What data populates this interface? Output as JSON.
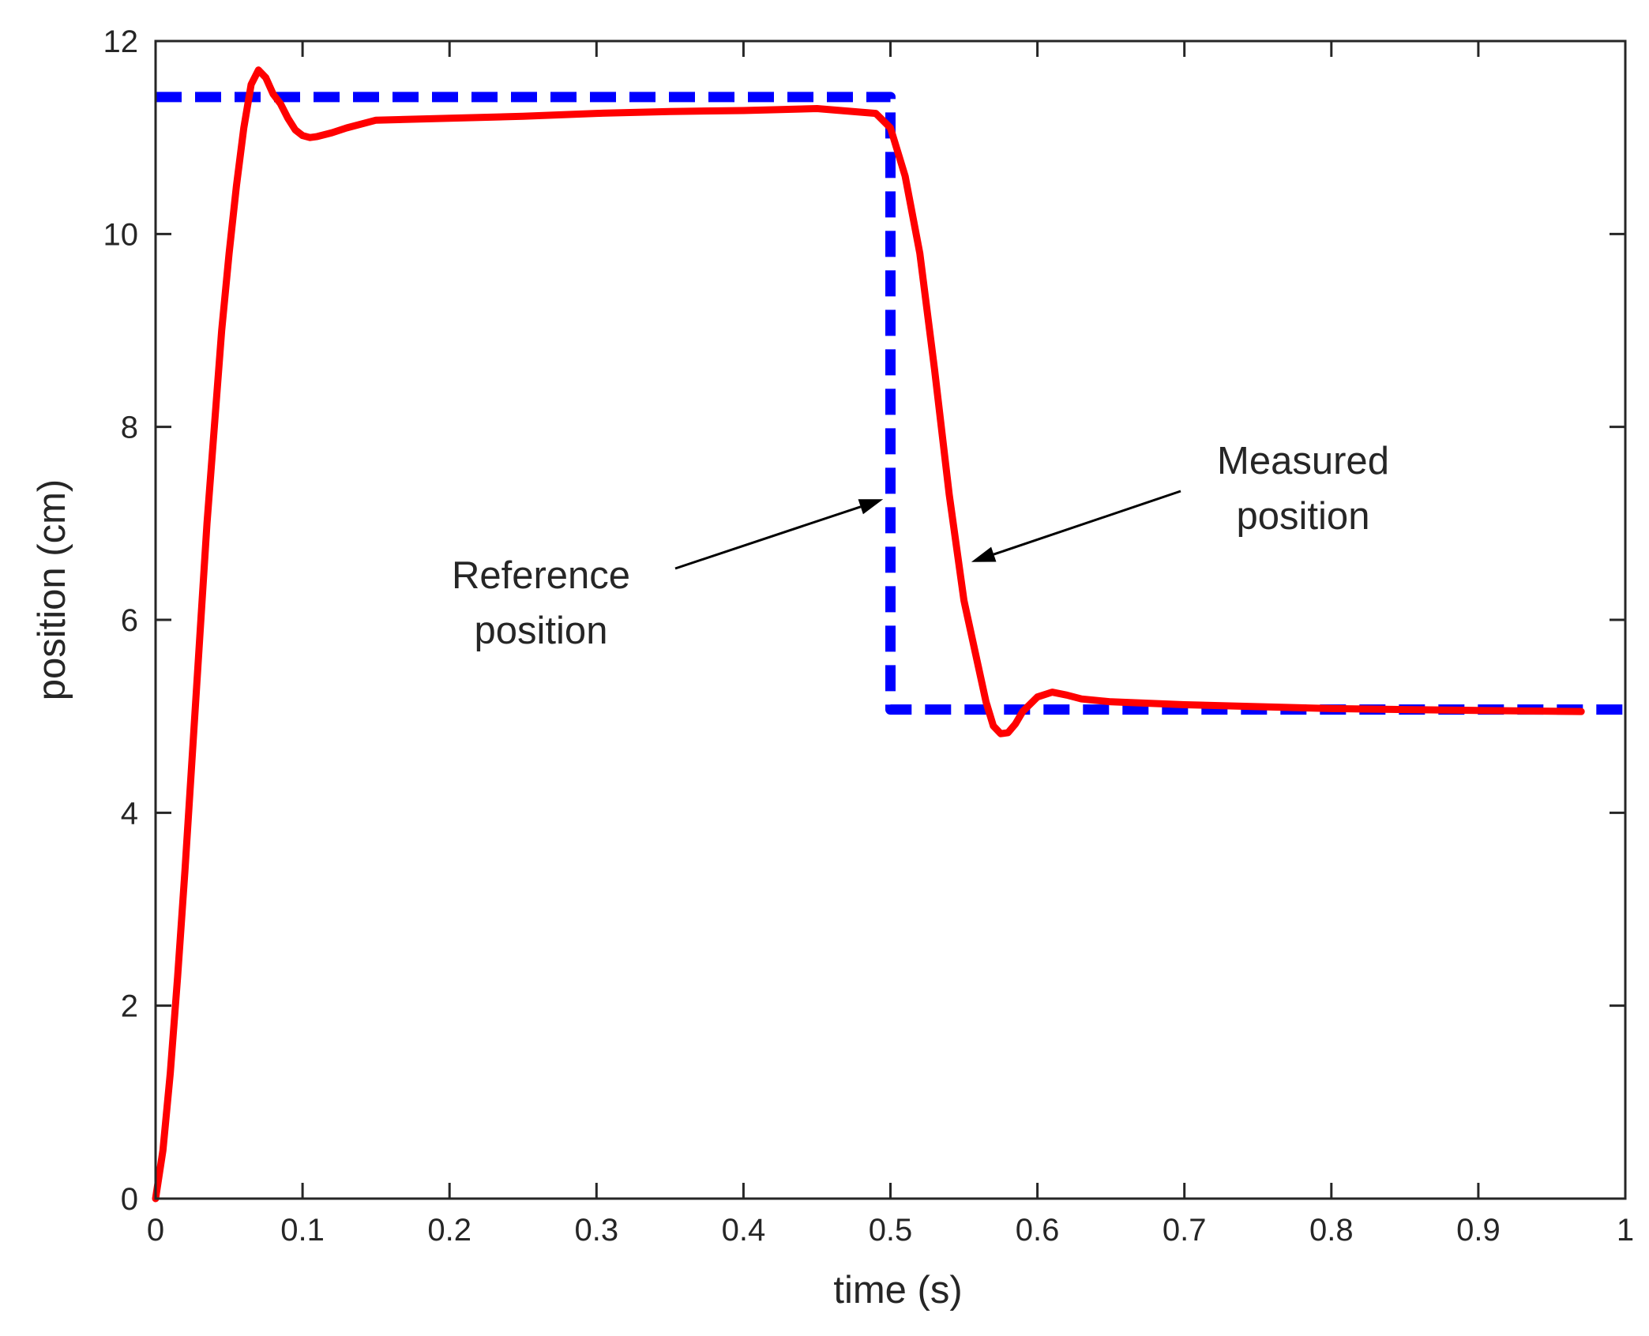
{
  "chart_data": {
    "type": "line",
    "title": "",
    "xlabel": "time (s)",
    "ylabel": "position (cm)",
    "xlim": [
      0,
      1
    ],
    "ylim": [
      0,
      12
    ],
    "xticks": [
      0,
      0.1,
      0.2,
      0.3,
      0.4,
      0.5,
      0.6,
      0.7,
      0.8,
      0.9,
      1
    ],
    "xtick_labels": [
      "0",
      "0.1",
      "0.2",
      "0.3",
      "0.4",
      "0.5",
      "0.6",
      "0.7",
      "0.8",
      "0.9",
      "1"
    ],
    "yticks": [
      0,
      2,
      4,
      6,
      8,
      10,
      12
    ],
    "ytick_labels": [
      "0",
      "2",
      "4",
      "6",
      "8",
      "10",
      "12"
    ],
    "grid": false,
    "series": [
      {
        "name": "Reference position",
        "style": "dashed",
        "color": "#0000ff",
        "x": [
          0,
          0.5,
          0.5,
          1.0
        ],
        "y": [
          11.42,
          11.42,
          5.07,
          5.07
        ]
      },
      {
        "name": "Measured position",
        "style": "solid",
        "color": "#ff0000",
        "x": [
          0,
          0.005,
          0.01,
          0.015,
          0.02,
          0.025,
          0.03,
          0.035,
          0.04,
          0.045,
          0.05,
          0.055,
          0.06,
          0.065,
          0.07,
          0.075,
          0.08,
          0.085,
          0.09,
          0.095,
          0.1,
          0.105,
          0.11,
          0.115,
          0.12,
          0.13,
          0.15,
          0.2,
          0.25,
          0.3,
          0.35,
          0.4,
          0.45,
          0.49,
          0.5,
          0.51,
          0.52,
          0.53,
          0.54,
          0.55,
          0.56,
          0.565,
          0.57,
          0.575,
          0.58,
          0.585,
          0.59,
          0.6,
          0.61,
          0.62,
          0.63,
          0.65,
          0.7,
          0.8,
          0.9,
          0.97
        ],
        "y": [
          0,
          0.5,
          1.3,
          2.3,
          3.4,
          4.6,
          5.8,
          7.0,
          8.0,
          9.0,
          9.8,
          10.5,
          11.1,
          11.55,
          11.7,
          11.62,
          11.45,
          11.35,
          11.2,
          11.08,
          11.02,
          11.0,
          11.01,
          11.03,
          11.05,
          11.1,
          11.18,
          11.2,
          11.22,
          11.25,
          11.27,
          11.28,
          11.3,
          11.25,
          11.1,
          10.6,
          9.8,
          8.6,
          7.3,
          6.2,
          5.5,
          5.15,
          4.9,
          4.82,
          4.83,
          4.92,
          5.05,
          5.2,
          5.25,
          5.22,
          5.18,
          5.15,
          5.12,
          5.08,
          5.06,
          5.05
        ]
      }
    ],
    "annotations": [
      {
        "text_line1": "Reference",
        "text_line2": "position",
        "points_to": "Reference position",
        "arrow_tip": [
          0.495,
          7.25
        ]
      },
      {
        "text_line1": "Measured",
        "text_line2": "position",
        "points_to": "Measured position",
        "arrow_tip": [
          0.555,
          6.6
        ]
      }
    ]
  }
}
